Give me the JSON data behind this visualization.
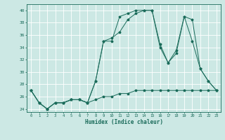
{
  "xlabel": "Humidex (Indice chaleur)",
  "xlim": [
    -0.5,
    23.5
  ],
  "ylim": [
    23.5,
    41.0
  ],
  "yticks": [
    24,
    26,
    28,
    30,
    32,
    34,
    36,
    38,
    40
  ],
  "xticks": [
    0,
    1,
    2,
    3,
    4,
    5,
    6,
    7,
    8,
    9,
    10,
    11,
    12,
    13,
    14,
    15,
    16,
    17,
    18,
    19,
    20,
    21,
    22,
    23
  ],
  "bg_color": "#cce8e4",
  "line_color": "#1a6b5a",
  "grid_color": "#ffffff",
  "line1_x": [
    0,
    1,
    2,
    3,
    4,
    5,
    6,
    7,
    8,
    9,
    10,
    11,
    12,
    13,
    14,
    15,
    16,
    17,
    18,
    19,
    20,
    21,
    22,
    23
  ],
  "line1_y": [
    27.0,
    25.0,
    24.0,
    25.0,
    25.0,
    25.5,
    25.5,
    25.0,
    25.5,
    26.0,
    26.0,
    26.5,
    26.5,
    27.0,
    27.0,
    27.0,
    27.0,
    27.0,
    27.0,
    27.0,
    27.0,
    27.0,
    27.0,
    27.0
  ],
  "line2_x": [
    0,
    1,
    2,
    3,
    4,
    5,
    6,
    7,
    8,
    9,
    10,
    11,
    12,
    13,
    14,
    15,
    16,
    17,
    18,
    19,
    20,
    21,
    22,
    23
  ],
  "line2_y": [
    27.0,
    25.0,
    24.0,
    25.0,
    25.0,
    25.5,
    25.5,
    25.0,
    28.5,
    35.0,
    35.5,
    36.5,
    38.5,
    39.5,
    40.0,
    40.0,
    34.0,
    31.5,
    33.5,
    39.0,
    35.0,
    30.5,
    28.5,
    27.0
  ],
  "line3_x": [
    0,
    1,
    2,
    3,
    4,
    5,
    6,
    7,
    8,
    9,
    10,
    11,
    12,
    13,
    14,
    15,
    16,
    17,
    18,
    19,
    20,
    21,
    22,
    23
  ],
  "line3_y": [
    27.0,
    25.0,
    24.0,
    25.0,
    25.0,
    25.5,
    25.5,
    25.0,
    28.5,
    35.0,
    35.0,
    39.0,
    39.5,
    40.0,
    40.0,
    40.0,
    34.5,
    31.5,
    33.0,
    39.0,
    38.5,
    30.5,
    28.5,
    27.0
  ]
}
